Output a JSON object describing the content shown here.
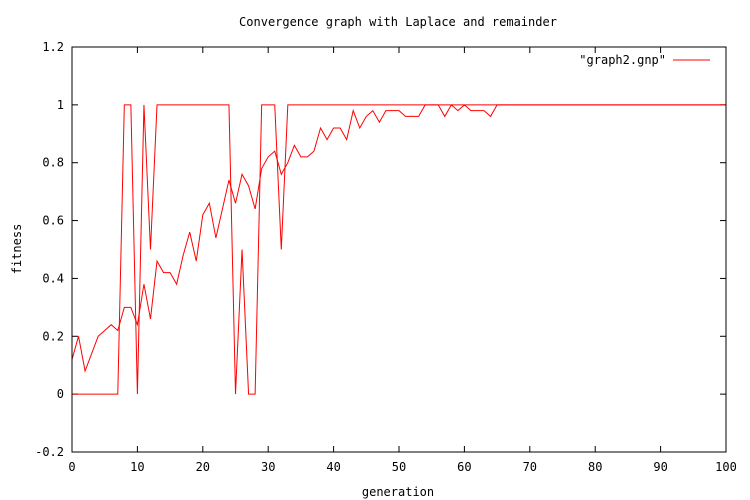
{
  "chart_data": {
    "type": "line",
    "title": "Convergence graph with Laplace and remainder",
    "xlabel": "generation",
    "ylabel": "fitness",
    "xlim": [
      0,
      100
    ],
    "ylim": [
      -0.2,
      1.2
    ],
    "x_ticks": [
      0,
      10,
      20,
      30,
      40,
      50,
      60,
      70,
      80,
      90,
      100
    ],
    "x_tick_labels": [
      "0",
      "10",
      "20",
      "30",
      "40",
      "50",
      "60",
      "70",
      "80",
      "90",
      "100"
    ],
    "y_ticks": [
      -0.2,
      0,
      0.2,
      0.4,
      0.6,
      0.8,
      1,
      1.2
    ],
    "y_tick_labels": [
      "-0.2",
      "0",
      "0.2",
      "0.4",
      "0.6",
      "0.8",
      "1",
      "1.2"
    ],
    "grid": false,
    "legend_position": "top-right",
    "series": [
      {
        "name": "\"graph2.gnp\"",
        "color": "#ff0000",
        "x": [
          0,
          1,
          2,
          3,
          4,
          5,
          6,
          7,
          8,
          9,
          10,
          11,
          12,
          13,
          14,
          15,
          16,
          17,
          18,
          19,
          20,
          21,
          22,
          23,
          24,
          25,
          26,
          27,
          28,
          29,
          30,
          31,
          32,
          33,
          34,
          35,
          36,
          37,
          38,
          39,
          40,
          41,
          42,
          43,
          44,
          45,
          46,
          47,
          48,
          49,
          50,
          51,
          52,
          53,
          54,
          55,
          56,
          57,
          58,
          59,
          60,
          61,
          62,
          63,
          64,
          65,
          66,
          67,
          68,
          69,
          70,
          71,
          72,
          73,
          74,
          75,
          76,
          77,
          78,
          79,
          80,
          81,
          82,
          83,
          84,
          85,
          86,
          87,
          88,
          89,
          90,
          91,
          92,
          93,
          94,
          95,
          96,
          97,
          98,
          99,
          100
        ],
        "y": [
          0.12,
          0.2,
          0.08,
          0.14,
          0.2,
          0.22,
          0.24,
          0.22,
          0.3,
          0.3,
          0.24,
          0.38,
          0.26,
          0.46,
          0.42,
          0.42,
          0.38,
          0.48,
          0.56,
          0.46,
          0.62,
          0.66,
          0.54,
          0.64,
          0.74,
          0.66,
          0.76,
          0.72,
          0.64,
          0.78,
          0.82,
          0.84,
          0.76,
          0.8,
          0.86,
          0.82,
          0.82,
          0.84,
          0.92,
          0.88,
          0.92,
          0.92,
          0.88,
          0.98,
          0.92,
          0.96,
          0.98,
          0.94,
          0.98,
          0.98,
          0.98,
          0.96,
          0.96,
          0.96,
          1,
          1,
          1,
          0.96,
          1,
          0.98,
          1,
          0.98,
          0.98,
          0.98,
          0.96,
          1,
          1,
          1,
          1,
          1,
          1,
          1,
          1,
          1,
          1,
          1,
          1,
          1,
          1,
          1,
          1,
          1,
          1,
          1,
          1,
          1,
          1,
          1,
          1,
          1,
          1,
          1,
          1,
          1,
          1,
          1,
          1,
          1,
          1,
          1,
          1
        ]
      },
      {
        "name": "",
        "color": "#ff0000",
        "x": [
          0,
          1,
          2,
          3,
          4,
          5,
          6,
          7,
          8,
          9,
          10,
          11,
          12,
          13,
          14,
          15,
          16,
          17,
          18,
          19,
          20,
          21,
          22,
          23,
          24,
          25,
          26,
          27,
          28,
          29,
          30,
          31,
          32,
          33,
          34,
          35,
          36,
          37,
          38,
          39,
          40,
          41,
          42,
          43,
          44,
          45,
          46,
          47,
          48,
          49,
          50,
          51,
          52,
          53,
          54,
          55,
          56,
          57,
          58,
          59,
          60,
          61,
          62,
          63,
          64,
          65,
          66,
          67,
          68,
          69,
          70,
          71,
          72,
          73,
          74,
          75,
          76,
          77,
          78,
          79,
          80,
          81,
          82,
          83,
          84,
          85,
          86,
          87,
          88,
          89,
          90,
          91,
          92,
          93,
          94,
          95,
          96,
          97,
          98,
          99,
          100
        ],
        "y": [
          0,
          0,
          0,
          0,
          0,
          0,
          0,
          0,
          1,
          1,
          0,
          1,
          0.5,
          1,
          1,
          1,
          1,
          1,
          1,
          1,
          1,
          1,
          1,
          1,
          1,
          0,
          0.5,
          0,
          0,
          1,
          1,
          1,
          0.5,
          1,
          1,
          1,
          1,
          1,
          1,
          1,
          1,
          1,
          1,
          1,
          1,
          1,
          1,
          1,
          1,
          1,
          1,
          1,
          1,
          1,
          1,
          1,
          1,
          1,
          1,
          1,
          1,
          1,
          1,
          1,
          1,
          1,
          1,
          1,
          1,
          1,
          1,
          1,
          1,
          1,
          1,
          1,
          1,
          1,
          1,
          1,
          1,
          1,
          1,
          1,
          1,
          1,
          1,
          1,
          1,
          1,
          1,
          1,
          1,
          1,
          1,
          1,
          1,
          1,
          1,
          1,
          1
        ]
      }
    ]
  }
}
